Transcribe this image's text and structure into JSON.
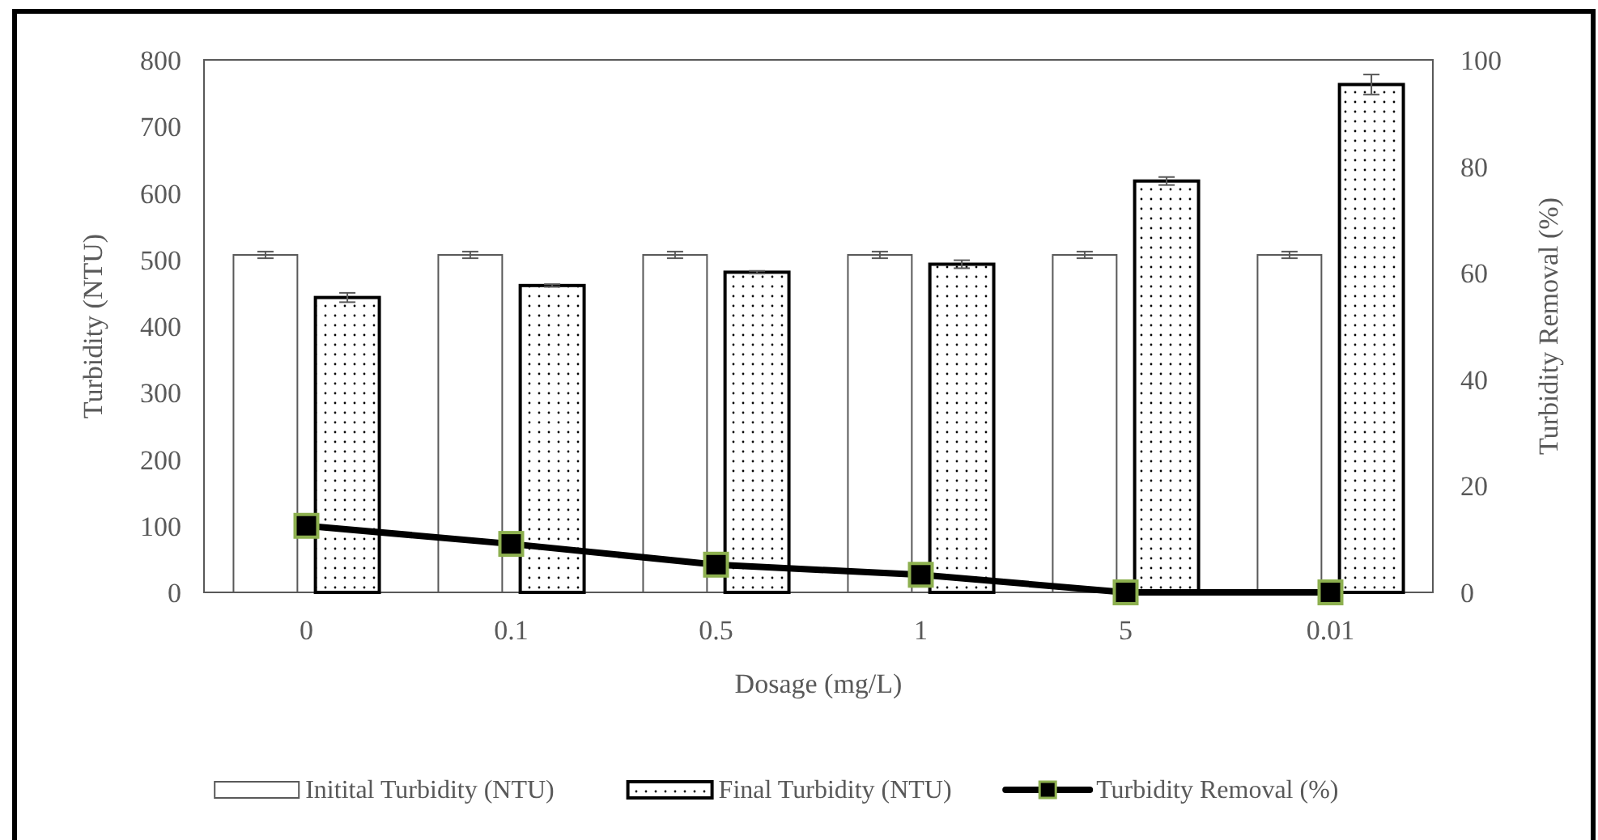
{
  "chart_data": {
    "type": "bar",
    "xlabel": "Dosage (mg/L)",
    "ylabel": "Turbidity (NTU)",
    "y2label": "Turbidity Removal (%)",
    "categories": [
      "0",
      "0.1",
      "0.5",
      "1",
      "5",
      "0.01"
    ],
    "series": [
      {
        "name": "Initital Turbidity (NTU)",
        "color": "#ffffff",
        "values": [
          507,
          507,
          507,
          507,
          507,
          507
        ],
        "errors": [
          5,
          5,
          5,
          5,
          5,
          5
        ]
      },
      {
        "name": "Final Turbidity (NTU)",
        "color": "#000000",
        "values": [
          443,
          461,
          481,
          493,
          618,
          763
        ],
        "errors": [
          7,
          2,
          2,
          6,
          6,
          15
        ]
      },
      {
        "name": "Turbidity Removal (%)",
        "type": "line",
        "axis": "y2",
        "color": "#000000",
        "marker": "square",
        "values": [
          12.5,
          9.1,
          5.2,
          3.3,
          0,
          0
        ]
      }
    ],
    "ylim": [
      0,
      800
    ],
    "yticks": [
      0,
      100,
      200,
      300,
      400,
      500,
      600,
      700,
      800
    ],
    "y2lim": [
      0,
      100
    ],
    "y2ticks": [
      0,
      20,
      40,
      60,
      80,
      100
    ],
    "grid": false,
    "legend": "bottom"
  }
}
